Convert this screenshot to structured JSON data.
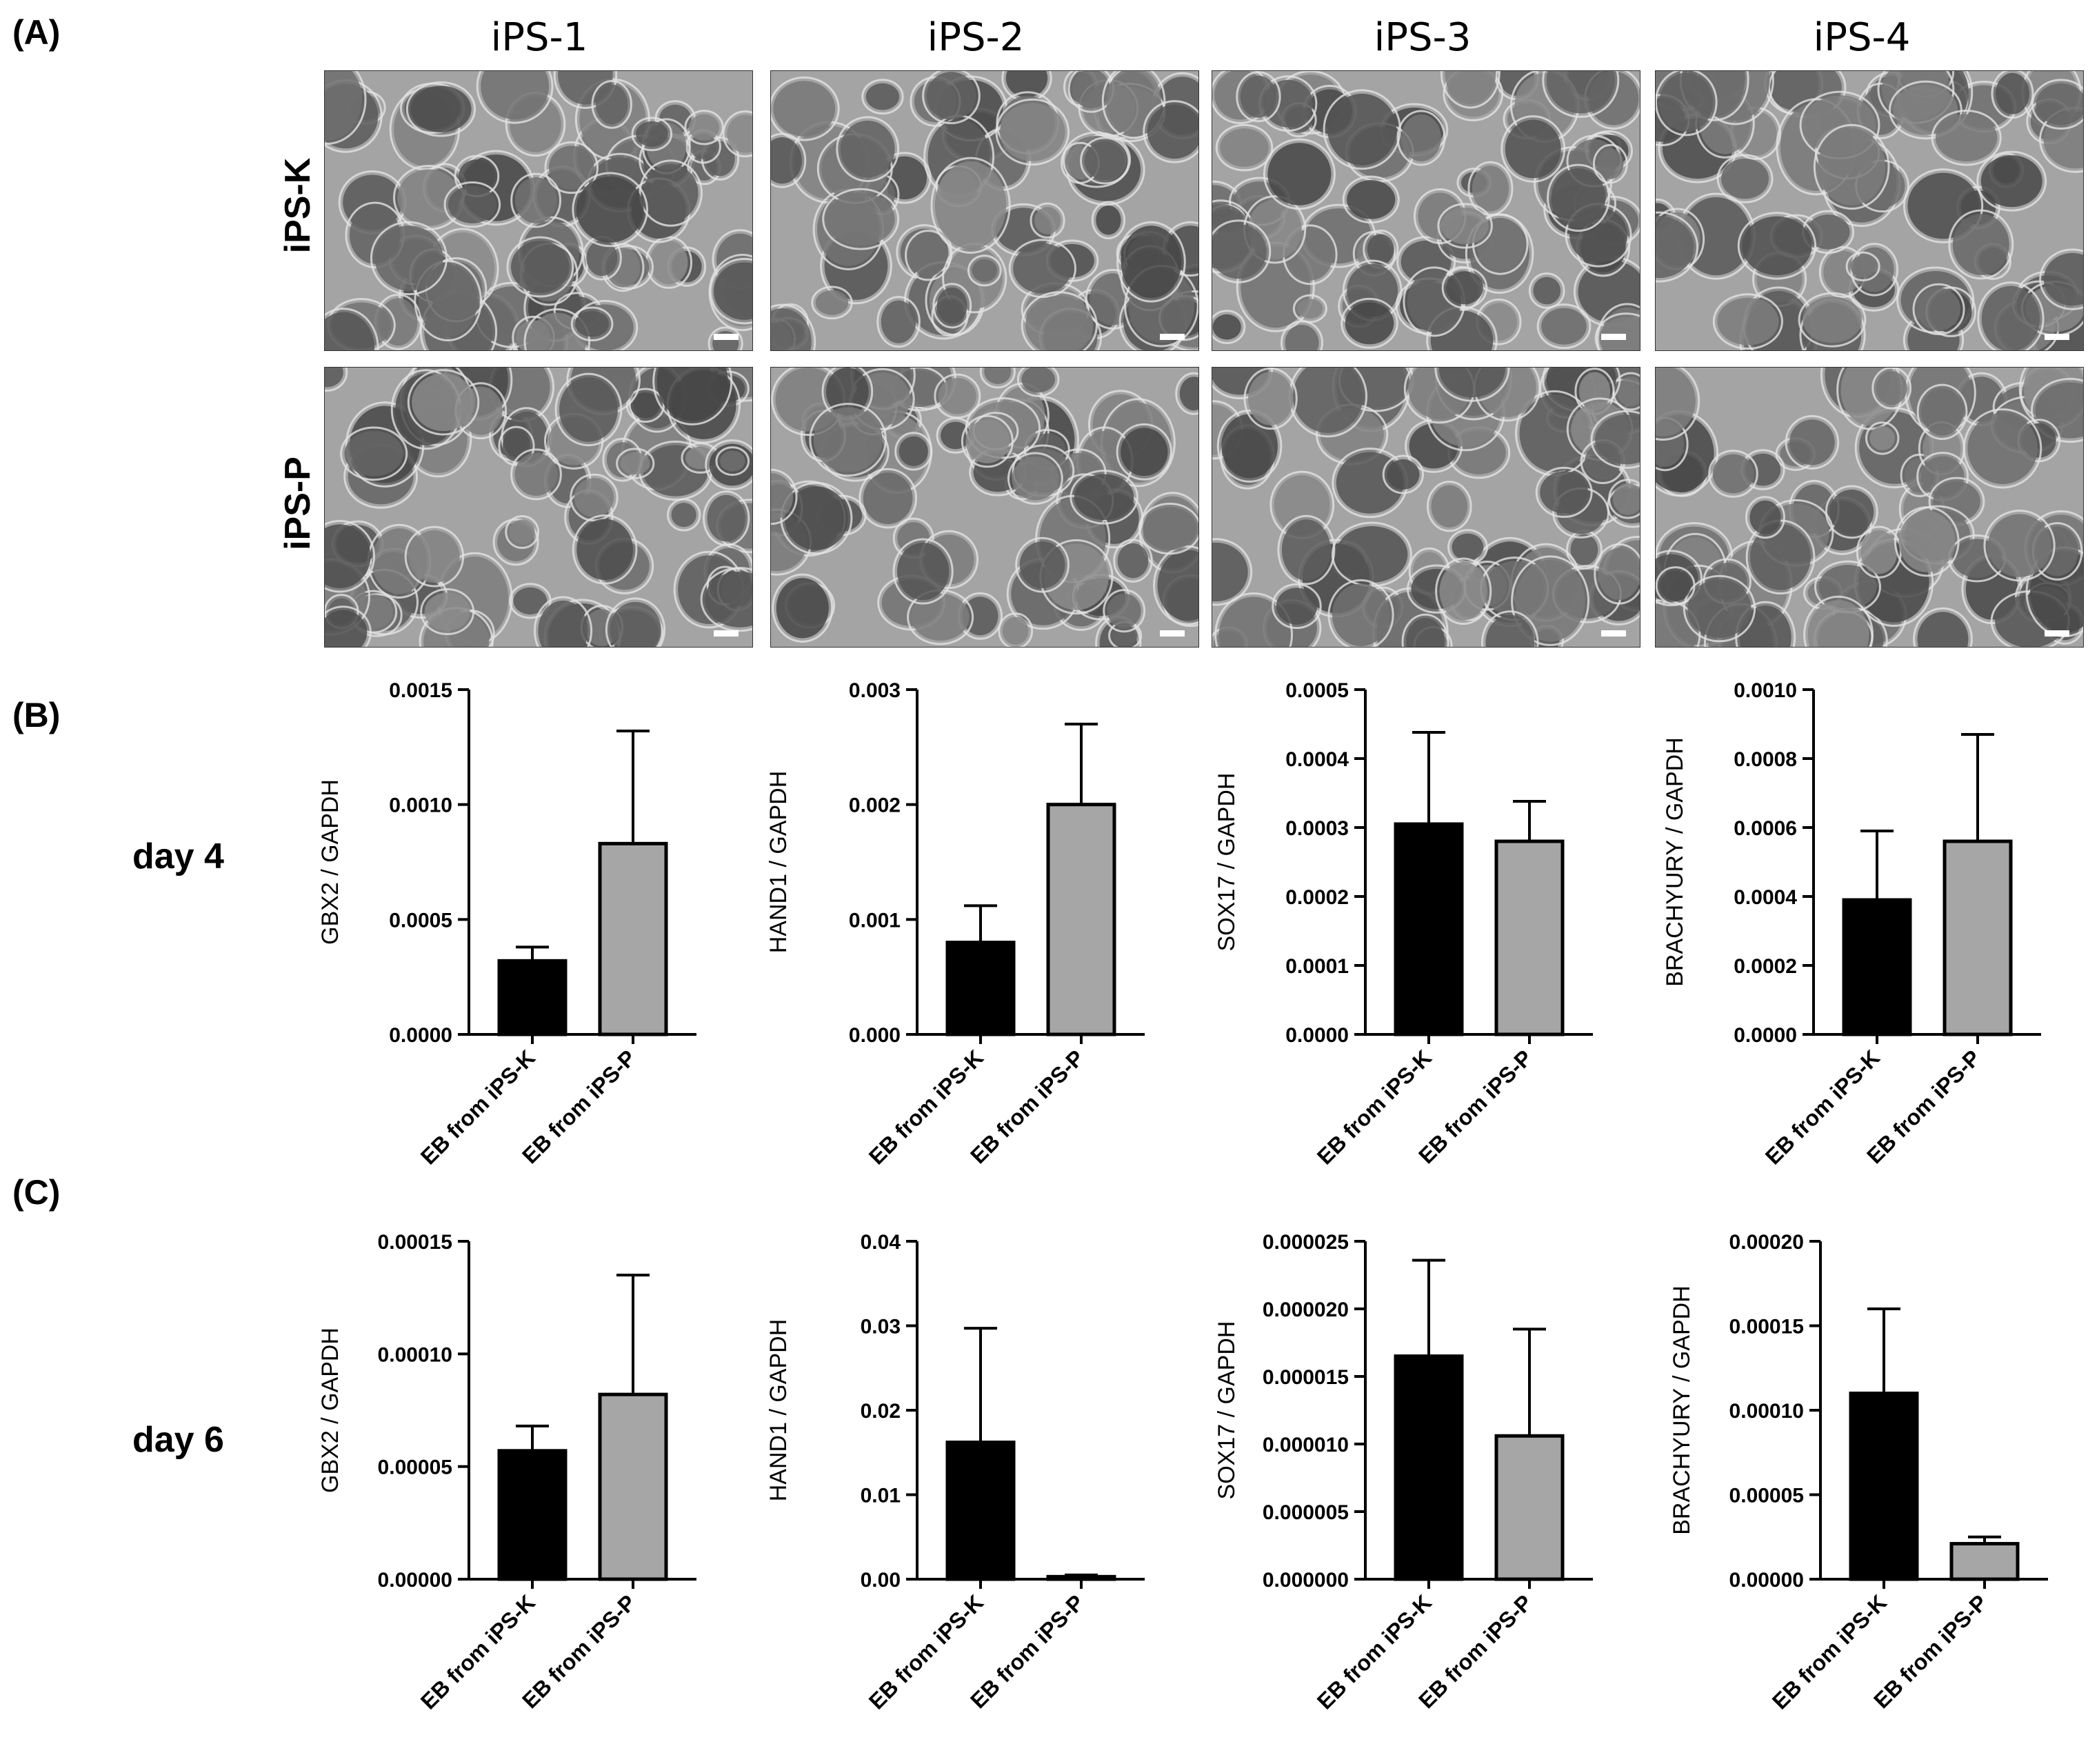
{
  "panels": {
    "A": "(A)",
    "B": "(B)",
    "C": "(C)"
  },
  "columns": [
    "iPS-1",
    "iPS-2",
    "iPS-3",
    "iPS-4"
  ],
  "rows": [
    "iPS-K",
    "iPS-P"
  ],
  "days": {
    "day4": "day 4",
    "day6": "day 6"
  },
  "colors": {
    "iPS-K": "#000000",
    "iPS-P": "#a6a6a6"
  },
  "chart_data": [
    {
      "type": "bar",
      "panel": "B",
      "ylabel": "GBX2 / GAPDH",
      "categories": [
        "EB from iPS-K",
        "EB from iPS-P"
      ],
      "values": [
        0.00032,
        0.00083
      ],
      "errors": [
        6e-05,
        0.00049
      ],
      "ylim": [
        0,
        0.0015
      ],
      "yticks": [
        "0.0000",
        "0.0005",
        "0.0010",
        "0.0015"
      ]
    },
    {
      "type": "bar",
      "panel": "B",
      "ylabel": "HAND1 / GAPDH",
      "categories": [
        "EB from iPS-K",
        "EB from iPS-P"
      ],
      "values": [
        0.0008,
        0.002
      ],
      "errors": [
        0.00032,
        0.0007
      ],
      "ylim": [
        0,
        0.003
      ],
      "yticks": [
        "0.000",
        "0.001",
        "0.002",
        "0.003"
      ]
    },
    {
      "type": "bar",
      "panel": "B",
      "ylabel": "SOX17 / GAPDH",
      "categories": [
        "EB from iPS-K",
        "EB from iPS-P"
      ],
      "values": [
        0.000305,
        0.00028
      ],
      "errors": [
        0.000133,
        5.8e-05
      ],
      "ylim": [
        0,
        0.0005
      ],
      "yticks": [
        "0.0000",
        "0.0001",
        "0.0002",
        "0.0003",
        "0.0004",
        "0.0005"
      ]
    },
    {
      "type": "bar",
      "panel": "B",
      "ylabel": "BRACHYURY / GAPDH",
      "categories": [
        "EB from iPS-K",
        "EB from iPS-P"
      ],
      "values": [
        0.00039,
        0.00056
      ],
      "errors": [
        0.0002,
        0.00031
      ],
      "ylim": [
        0,
        0.001
      ],
      "yticks": [
        "0.0000",
        "0.0002",
        "0.0004",
        "0.0006",
        "0.0008",
        "0.0010"
      ]
    },
    {
      "type": "bar",
      "panel": "C",
      "ylabel": "GBX2 / GAPDH",
      "categories": [
        "EB from iPS-K",
        "EB from iPS-P"
      ],
      "values": [
        5.7e-05,
        8.2e-05
      ],
      "errors": [
        1.1e-05,
        5.3e-05
      ],
      "ylim": [
        0,
        0.00015
      ],
      "yticks": [
        "0.00000",
        "0.00005",
        "0.00010",
        "0.00015"
      ]
    },
    {
      "type": "bar",
      "panel": "C",
      "ylabel": "HAND1 / GAPDH",
      "categories": [
        "EB from iPS-K",
        "EB from iPS-P"
      ],
      "values": [
        0.0162,
        0.0003
      ],
      "errors": [
        0.0135,
        0.0002
      ],
      "ylim": [
        0,
        0.04
      ],
      "yticks": [
        "0.00",
        "0.01",
        "0.02",
        "0.03",
        "0.04"
      ]
    },
    {
      "type": "bar",
      "panel": "C",
      "ylabel": "SOX17 / GAPDH",
      "categories": [
        "EB from iPS-K",
        "EB from iPS-P"
      ],
      "values": [
        1.65e-05,
        1.06e-05
      ],
      "errors": [
        7.1e-06,
        7.9e-06
      ],
      "ylim": [
        0,
        2.5e-05
      ],
      "yticks": [
        "0.000000",
        "0.000005",
        "0.000010",
        "0.000015",
        "0.000020",
        "0.000025"
      ]
    },
    {
      "type": "bar",
      "panel": "C",
      "ylabel": "BRACHYURY / GAPDH",
      "categories": [
        "EB from iPS-K",
        "EB from iPS-P"
      ],
      "values": [
        0.00011,
        2.1e-05
      ],
      "errors": [
        5e-05,
        4e-06
      ],
      "ylim": [
        0,
        0.0002
      ],
      "yticks": [
        "0.00000",
        "0.00005",
        "0.00010",
        "0.00015",
        "0.00020"
      ]
    }
  ]
}
